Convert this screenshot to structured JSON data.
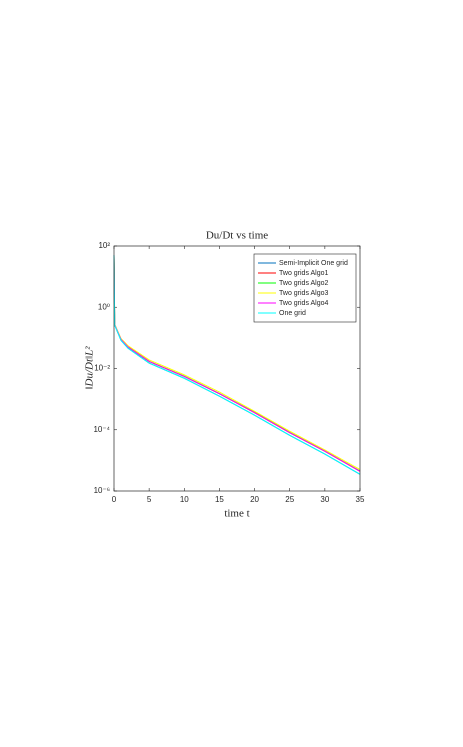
{
  "chart_data": {
    "type": "line",
    "title": "Du/Dt vs time",
    "xlabel": "time t",
    "ylabel": "‖Du/Dt‖L²",
    "x": [
      0,
      0.1,
      1,
      2,
      5,
      10,
      15,
      20,
      25,
      30,
      35
    ],
    "xlim": [
      0,
      35
    ],
    "xticks": [
      0,
      5,
      10,
      15,
      20,
      25,
      30,
      35
    ],
    "yscale": "log",
    "ylim": [
      1e-06,
      100
    ],
    "yticks": [
      {
        "value": 100,
        "label": "10²"
      },
      {
        "value": 1,
        "label": "10⁰"
      },
      {
        "value": 0.01,
        "label": "10⁻²"
      },
      {
        "value": 0.0001,
        "label": "10⁻⁴"
      },
      {
        "value": 1e-06,
        "label": "10⁻⁶"
      }
    ],
    "grid": false,
    "legend": "upper right",
    "series": [
      {
        "name": "Semi-Implicit One grid",
        "color": "#0072bd",
        "values": [
          50,
          0.26,
          0.083,
          0.046,
          0.015,
          0.0048,
          0.00125,
          0.0003,
          6.6e-05,
          1.6e-05,
          3.5e-06
        ]
      },
      {
        "name": "Two grids Algo1",
        "color": "#ff0000",
        "values": [
          50,
          0.27,
          0.088,
          0.05,
          0.017,
          0.0055,
          0.0015,
          0.00036,
          8e-05,
          2e-05,
          4.4e-06
        ]
      },
      {
        "name": "Two grids Algo2",
        "color": "#00ff00",
        "values": [
          50,
          0.27,
          0.09,
          0.051,
          0.017,
          0.0056,
          0.0015,
          0.00037,
          8.2e-05,
          2e-05,
          4.5e-06
        ]
      },
      {
        "name": "Two grids Algo3",
        "color": "#ffff00",
        "values": [
          50,
          0.28,
          0.095,
          0.055,
          0.019,
          0.0062,
          0.0017,
          0.0004,
          9e-05,
          2.2e-05,
          5e-06
        ]
      },
      {
        "name": "Two grids Algo4",
        "color": "#ff00ff",
        "values": [
          50,
          0.27,
          0.089,
          0.05,
          0.017,
          0.0055,
          0.0015,
          0.00036,
          8e-05,
          2e-05,
          4.4e-06
        ]
      },
      {
        "name": "One grid",
        "color": "#00ffff",
        "values": [
          50,
          0.26,
          0.083,
          0.046,
          0.015,
          0.0048,
          0.00125,
          0.0003,
          6.6e-05,
          1.6e-05,
          3.5e-06
        ]
      }
    ]
  }
}
